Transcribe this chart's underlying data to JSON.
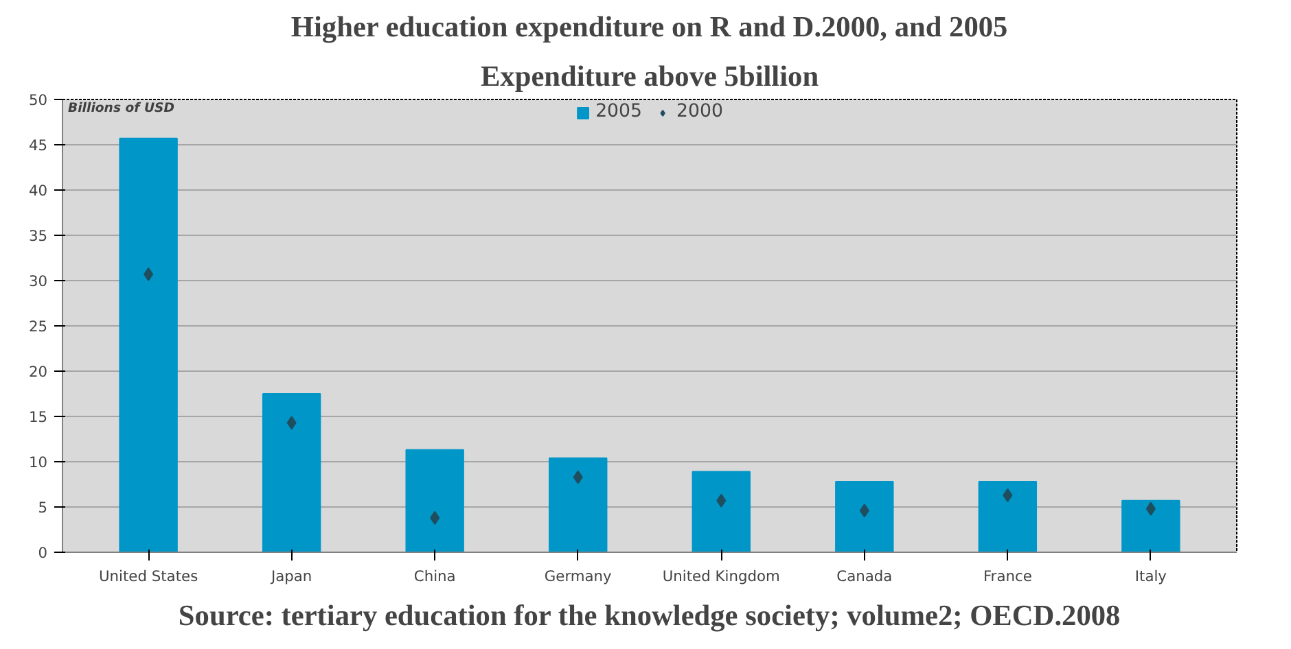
{
  "chart_data": {
    "type": "bar",
    "title": "Higher education expenditure on R and D.2000, and 2005",
    "subtitle": "Expenditure above 5billion",
    "ylabel": "Billions of USD",
    "categories": [
      "United States",
      "Japan",
      "China",
      "Germany",
      "United Kingdom",
      "Canada",
      "France",
      "Italy"
    ],
    "series": [
      {
        "name": "2005",
        "color": "#0096c8",
        "values": [
          45.7,
          17.5,
          11.3,
          10.4,
          8.9,
          7.8,
          7.8,
          5.7
        ]
      },
      {
        "name": "2000",
        "type": "scatter",
        "color": "#1f4e5f",
        "values": [
          30.7,
          14.3,
          3.8,
          8.3,
          5.7,
          4.6,
          6.3,
          4.8
        ]
      }
    ],
    "ylim": [
      0,
      50
    ],
    "yticks": [
      0,
      5,
      10,
      15,
      20,
      25,
      30,
      35,
      40,
      45,
      50
    ],
    "grid": "y",
    "legend": "top",
    "marker": "diamond",
    "annotations": [
      "Source: tertiary education for the knowledge society; volume2; OECD.2008"
    ]
  }
}
